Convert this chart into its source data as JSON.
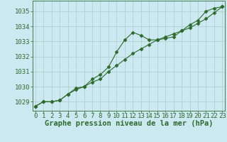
{
  "line1_x": [
    0,
    1,
    2,
    3,
    4,
    5,
    6,
    7,
    8,
    9,
    10,
    11,
    12,
    13,
    14,
    15,
    16,
    17,
    18,
    19,
    20,
    21,
    22,
    23
  ],
  "line1_y": [
    1028.7,
    1029.0,
    1029.0,
    1029.1,
    1029.5,
    1029.9,
    1030.0,
    1030.5,
    1030.8,
    1031.3,
    1032.3,
    1033.1,
    1033.6,
    1033.4,
    1033.1,
    1033.1,
    1033.2,
    1033.3,
    1033.7,
    1034.1,
    1034.4,
    1035.0,
    1035.2,
    1035.3
  ],
  "line2_x": [
    0,
    1,
    2,
    3,
    4,
    5,
    6,
    7,
    8,
    9,
    10,
    11,
    12,
    13,
    14,
    15,
    16,
    17,
    18,
    19,
    20,
    21,
    22,
    23
  ],
  "line2_y": [
    1028.7,
    1029.0,
    1029.0,
    1029.1,
    1029.5,
    1029.8,
    1030.0,
    1030.3,
    1030.5,
    1031.0,
    1031.4,
    1031.8,
    1032.2,
    1032.5,
    1032.8,
    1033.1,
    1033.3,
    1033.5,
    1033.7,
    1033.9,
    1034.2,
    1034.5,
    1034.9,
    1035.3
  ],
  "line_color": "#2d6b2d",
  "marker_color": "#2d6b2d",
  "bg_color": "#cce8f0",
  "grid_color": "#aacccc",
  "text_color": "#2d6b2d",
  "xlabel": "Graphe pression niveau de la mer (hPa)",
  "yticks": [
    1029,
    1030,
    1031,
    1032,
    1033,
    1034,
    1035
  ],
  "xticks": [
    0,
    1,
    2,
    3,
    4,
    5,
    6,
    7,
    8,
    9,
    10,
    11,
    12,
    13,
    14,
    15,
    16,
    17,
    18,
    19,
    20,
    21,
    22,
    23
  ],
  "ylim": [
    1028.4,
    1035.7
  ],
  "xlim": [
    -0.3,
    23.3
  ],
  "font_size": 6.5,
  "xlabel_fontsize": 7.5,
  "marker_size": 2.5,
  "line_width": 0.8
}
